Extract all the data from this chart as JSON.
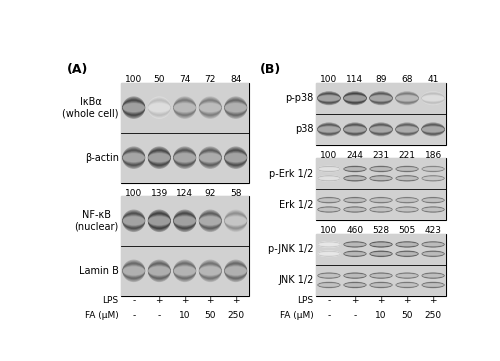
{
  "panel_A": {
    "label": "(A)",
    "blot_groups": [
      {
        "numbers": [
          "100",
          "50",
          "74",
          "72",
          "84"
        ],
        "rows": [
          {
            "name": "IκBα\n(whole cell)",
            "band_intensities": [
              0.85,
              0.3,
              0.62,
              0.6,
              0.7
            ],
            "double": false
          },
          {
            "name": "β-actin",
            "band_intensities": [
              0.8,
              0.85,
              0.78,
              0.75,
              0.82
            ],
            "double": false
          }
        ]
      },
      {
        "numbers": [
          "100",
          "139",
          "124",
          "92",
          "58"
        ],
        "rows": [
          {
            "name": "NF-κB\n(nuclear)",
            "band_intensities": [
              0.82,
              0.88,
              0.85,
              0.75,
              0.52
            ],
            "double": false
          },
          {
            "name": "Lamin B",
            "band_intensities": [
              0.7,
              0.72,
              0.68,
              0.65,
              0.7
            ],
            "double": false
          }
        ]
      }
    ],
    "lps": [
      "-",
      "+",
      "+",
      "+",
      "+"
    ],
    "fa": [
      "-",
      "-",
      "10",
      "50",
      "250"
    ]
  },
  "panel_B": {
    "label": "(B)",
    "blot_groups": [
      {
        "numbers": [
          "100",
          "114",
          "89",
          "68",
          "41"
        ],
        "rows": [
          {
            "name": "p-p38",
            "band_intensities": [
              0.82,
              0.88,
              0.78,
              0.62,
              0.3
            ],
            "double": false
          },
          {
            "name": "p38",
            "band_intensities": [
              0.78,
              0.8,
              0.78,
              0.75,
              0.78
            ],
            "double": false
          }
        ]
      },
      {
        "numbers": [
          "100",
          "244",
          "231",
          "221",
          "186"
        ],
        "rows": [
          {
            "name": "p-Erk 1/2",
            "band_intensities": [
              0.35,
              0.82,
              0.78,
              0.75,
              0.65
            ],
            "double": true
          },
          {
            "name": "Erk 1/2",
            "band_intensities": [
              0.72,
              0.75,
              0.72,
              0.7,
              0.72
            ],
            "double": true
          }
        ]
      },
      {
        "numbers": [
          "100",
          "460",
          "528",
          "505",
          "423"
        ],
        "rows": [
          {
            "name": "p-JNK 1/2",
            "band_intensities": [
              0.28,
              0.82,
              0.88,
              0.84,
              0.78
            ],
            "double": true
          },
          {
            "name": "JNK 1/2",
            "band_intensities": [
              0.72,
              0.78,
              0.75,
              0.72,
              0.75
            ],
            "double": true
          }
        ]
      }
    ],
    "lps": [
      "-",
      "+",
      "+",
      "+",
      "+"
    ],
    "fa": [
      "-",
      "-",
      "10",
      "50",
      "250"
    ]
  },
  "bg_color": "#ffffff",
  "number_fontsize": 6.5,
  "label_fontsize": 7.0,
  "axis_label_fontsize": 6.5
}
